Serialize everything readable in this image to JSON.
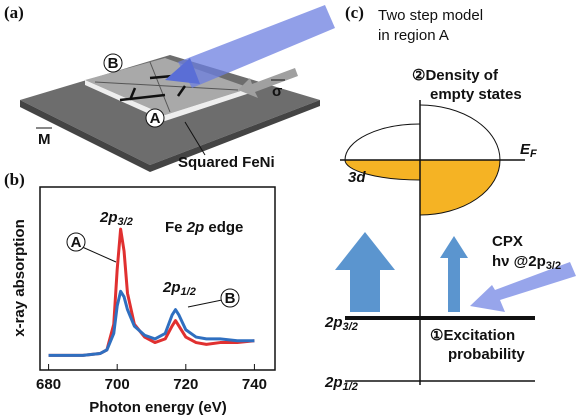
{
  "chart_data": {
    "type": "line",
    "panel_label": "(b)",
    "xlabel": "Photon energy (eV)",
    "ylabel": "x-ray absorption",
    "x": [
      680,
      690,
      695,
      697,
      699,
      700,
      701,
      702,
      703,
      705,
      708,
      711,
      714,
      716,
      717,
      718,
      720,
      723,
      726,
      730,
      735,
      740
    ],
    "series": [
      {
        "color": "#e03030",
        "values": [
          0.08,
          0.08,
          0.09,
          0.11,
          0.25,
          0.55,
          0.77,
          0.65,
          0.42,
          0.25,
          0.18,
          0.15,
          0.17,
          0.24,
          0.27,
          0.24,
          0.18,
          0.15,
          0.14,
          0.15,
          0.15,
          0.16
        ]
      },
      {
        "color": "#2f6fc0",
        "values": [
          0.08,
          0.08,
          0.09,
          0.11,
          0.2,
          0.35,
          0.43,
          0.4,
          0.33,
          0.24,
          0.19,
          0.17,
          0.2,
          0.3,
          0.33,
          0.3,
          0.22,
          0.18,
          0.17,
          0.17,
          0.16,
          0.16
        ]
      }
    ],
    "xlim": [
      677.5,
      746
    ],
    "xticks": [
      680,
      700,
      720,
      740
    ],
    "ylim": [
      0,
      1
    ],
    "annotations": {
      "peak1": {
        "main": "2p",
        "sub": "3/2"
      },
      "edge": {
        "pre": "Fe ",
        "main": "2p",
        "post": " edge"
      },
      "peak2": {
        "main": "2p",
        "sub": "1/2"
      },
      "A": "A",
      "B": "B"
    }
  },
  "panel_a": {
    "label": "(a)",
    "B": "B",
    "A": "A",
    "sigma": "σ",
    "M": "M",
    "sample": "Squared FeNi"
  },
  "panel_c": {
    "label": "(c)",
    "title1": "Two step model",
    "title2": "in region A",
    "step2a": "②Density of",
    "step2b": "empty states",
    "ef_main": "E",
    "ef_sub": "F",
    "band": "3d",
    "cpx": "CPX",
    "hv_main": "hν @2p",
    "hv_sub": "3/2",
    "level1_main": "2p",
    "level1_sub": "3/2",
    "step1a": "①Excitation",
    "step1b": "probability",
    "level2_main": "2p",
    "level2_sub": "1/2"
  }
}
